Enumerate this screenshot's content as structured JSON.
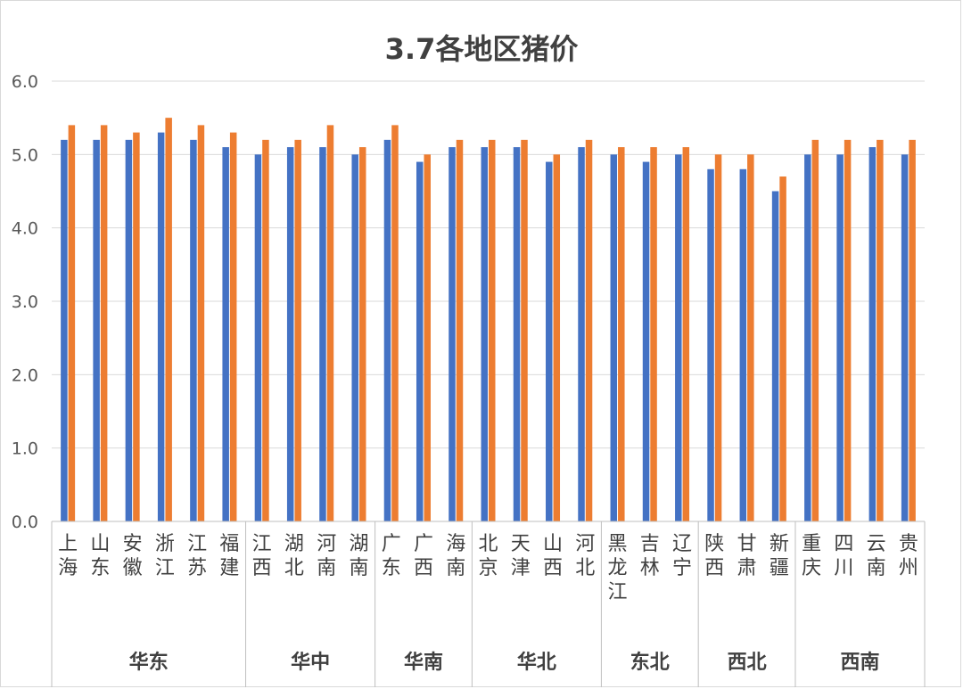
{
  "chart_data": {
    "type": "bar",
    "title": "3.7各地区猪价",
    "ylim": [
      0,
      6
    ],
    "yticks": [
      "0.0",
      "1.0",
      "2.0",
      "3.0",
      "4.0",
      "5.0",
      "6.0"
    ],
    "grid": true,
    "legend": "none",
    "categories": [
      "上海",
      "山东",
      "安徽",
      "浙江",
      "江苏",
      "福建",
      "江西",
      "湖北",
      "河南",
      "湖南",
      "广东",
      "广西",
      "海南",
      "北京",
      "天津",
      "山西",
      "河北",
      "黑龙江",
      "吉林",
      "辽宁",
      "陕西",
      "甘肃",
      "新疆",
      "重庆",
      "四川",
      "云南",
      "贵州"
    ],
    "groups": [
      {
        "name": "华东",
        "count": 6
      },
      {
        "name": "华中",
        "count": 4
      },
      {
        "name": "华南",
        "count": 3
      },
      {
        "name": "华北",
        "count": 4
      },
      {
        "name": "东北",
        "count": 3
      },
      {
        "name": "西北",
        "count": 3
      },
      {
        "name": "西南",
        "count": 4
      }
    ],
    "series": [
      {
        "values": [
          5.2,
          5.2,
          5.2,
          5.3,
          5.2,
          5.1,
          5.0,
          5.1,
          5.1,
          5.0,
          5.2,
          4.9,
          5.1,
          5.1,
          5.1,
          4.9,
          5.1,
          5.0,
          4.9,
          5.0,
          4.8,
          4.8,
          4.5,
          5.0,
          5.0,
          5.1,
          5.0
        ],
        "color": "#4472c4"
      },
      {
        "values": [
          5.4,
          5.4,
          5.3,
          5.5,
          5.4,
          5.3,
          5.2,
          5.2,
          5.4,
          5.1,
          5.4,
          5.0,
          5.2,
          5.2,
          5.2,
          5.0,
          5.2,
          5.1,
          5.1,
          5.1,
          5.0,
          5.0,
          4.7,
          5.2,
          5.2,
          5.2,
          5.2
        ],
        "color": "#ed7d31"
      }
    ]
  }
}
